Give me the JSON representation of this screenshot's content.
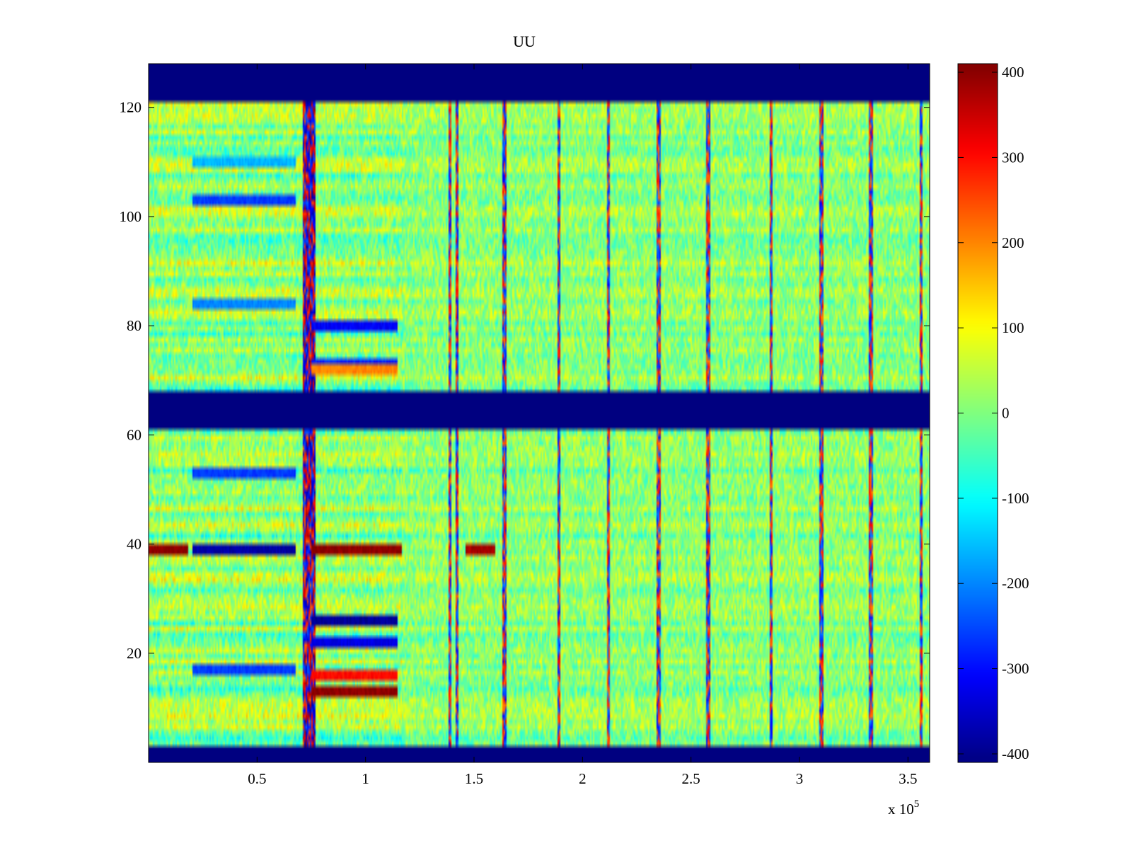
{
  "chart_data": {
    "type": "heatmap",
    "title": "UU",
    "xlabel": "",
    "ylabel": "",
    "x_exponent_label": {
      "base": "x 10",
      "exponent": "5"
    },
    "xlim": [
      0,
      3.6
    ],
    "ylim": [
      0,
      128
    ],
    "x_ticks": [
      0.5,
      1,
      1.5,
      2,
      2.5,
      3,
      3.5
    ],
    "x_tick_labels": [
      "0.5",
      "1",
      "1.5",
      "2",
      "2.5",
      "3",
      "3.5"
    ],
    "y_ticks": [
      20,
      40,
      60,
      80,
      100,
      120
    ],
    "y_tick_labels": [
      "20",
      "40",
      "60",
      "80",
      "100",
      "120"
    ],
    "colorbar": {
      "colormap": "jet",
      "range": [
        -410,
        410
      ],
      "ticks": [
        400,
        300,
        200,
        100,
        0,
        -100,
        -200,
        -300,
        -400
      ],
      "tick_labels": [
        "400",
        "300",
        "200",
        "100",
        "0",
        "-100",
        "-200",
        "-300",
        "-400"
      ]
    },
    "masked_row_bands": [
      {
        "y_from": 0,
        "y_to": 3.2,
        "value": -410
      },
      {
        "y_from": 61.5,
        "y_to": 67.5,
        "value": -410
      },
      {
        "y_from": 121.5,
        "y_to": 128,
        "value": -410
      }
    ],
    "background_value_range": [
      -60,
      80
    ],
    "event_columns_x": [
      0.72,
      1.39,
      1.42,
      1.64,
      1.89,
      2.12,
      2.35,
      2.58,
      2.87,
      3.1,
      3.33,
      3.56
    ],
    "strong_rows": [
      {
        "y": 39,
        "x_from": 0,
        "x_to": 0.18,
        "value": 400
      },
      {
        "y": 39,
        "x_from": 0.2,
        "x_to": 0.68,
        "value": -380
      },
      {
        "y": 39,
        "x_from": 0.75,
        "x_to": 1.17,
        "value": 400
      },
      {
        "y": 39,
        "x_from": 1.46,
        "x_to": 1.6,
        "value": 380
      },
      {
        "y": 26,
        "x_from": 0.75,
        "x_to": 1.15,
        "value": -390
      },
      {
        "y": 22,
        "x_from": 0.75,
        "x_to": 1.15,
        "value": -330
      },
      {
        "y": 16,
        "x_from": 0.75,
        "x_to": 1.15,
        "value": 300
      },
      {
        "y": 13,
        "x_from": 0.75,
        "x_to": 1.15,
        "value": 400
      },
      {
        "y": 17,
        "x_from": 0.2,
        "x_to": 0.68,
        "value": -260
      },
      {
        "y": 53,
        "x_from": 0.2,
        "x_to": 0.68,
        "value": -260
      },
      {
        "y": 80,
        "x_from": 0.75,
        "x_to": 1.15,
        "value": -310
      },
      {
        "y": 73,
        "x_from": 0.75,
        "x_to": 1.15,
        "value": -280
      },
      {
        "y": 72,
        "x_from": 0.75,
        "x_to": 1.15,
        "value": 200
      },
      {
        "y": 103,
        "x_from": 0.2,
        "x_to": 0.68,
        "value": -260
      },
      {
        "y": 84,
        "x_from": 0.2,
        "x_to": 0.68,
        "value": -200
      },
      {
        "y": 110,
        "x_from": 0.2,
        "x_to": 0.68,
        "value": -160
      }
    ]
  }
}
